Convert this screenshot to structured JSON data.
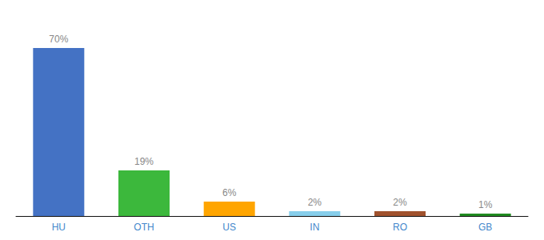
{
  "chart_data": {
    "type": "bar",
    "categories": [
      "HU",
      "OTH",
      "US",
      "IN",
      "RO",
      "GB"
    ],
    "values": [
      70,
      19,
      6,
      2,
      2,
      1
    ],
    "value_labels": [
      "70%",
      "19%",
      "6%",
      "2%",
      "2%",
      "1%"
    ],
    "colors": [
      "#4472C4",
      "#3CB83C",
      "#FFA500",
      "#87CEEB",
      "#A0522D",
      "#228B22"
    ],
    "ylim": [
      0,
      80
    ],
    "grid": false,
    "data_labels": true,
    "tick_labels": "x"
  }
}
